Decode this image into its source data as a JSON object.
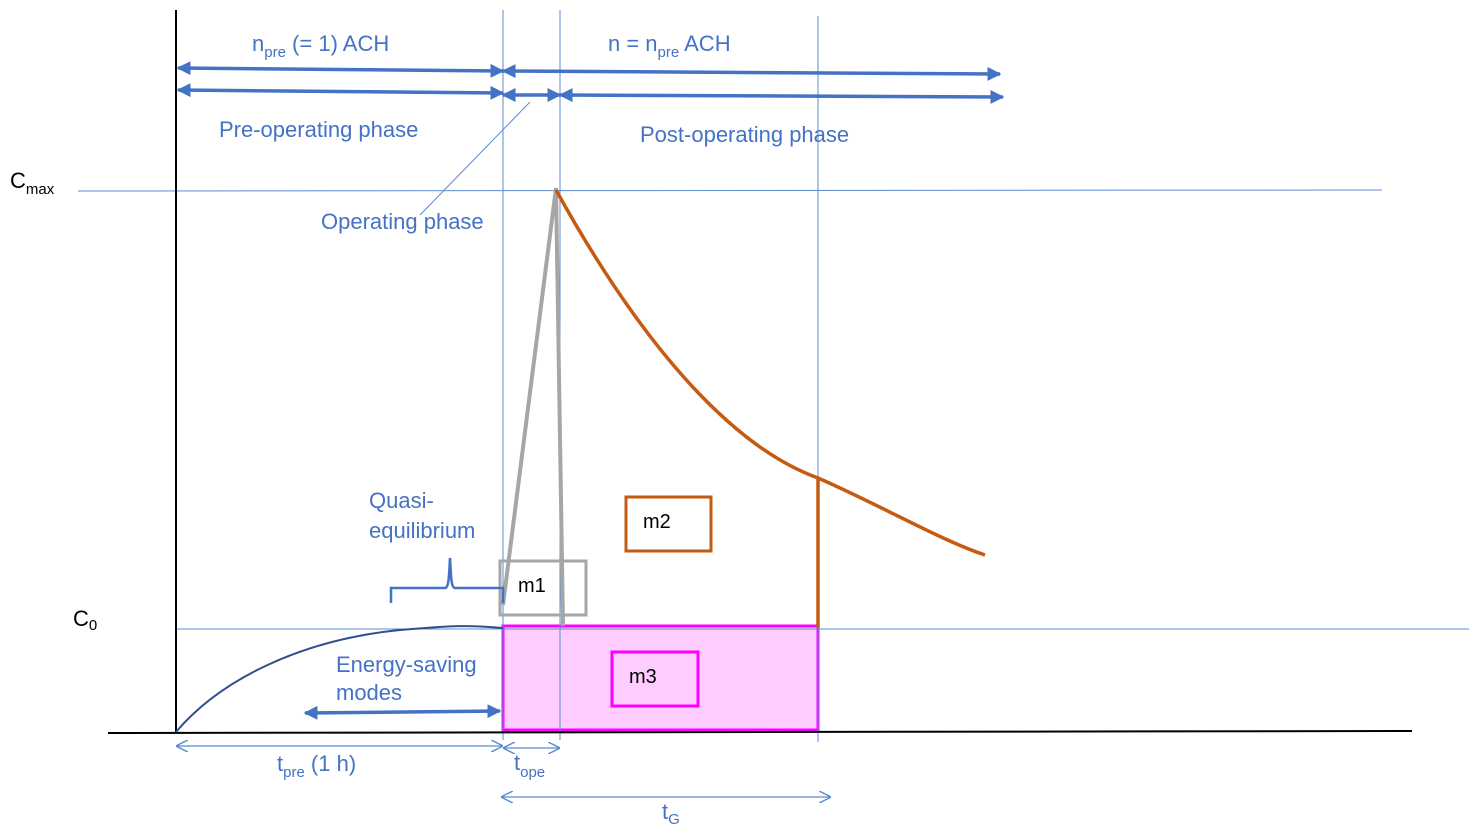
{
  "labels": {
    "n_pre_main": "n",
    "n_pre_sub": "pre",
    "n_pre_suffix": " (= 1) ACH",
    "n_post_prefix": "n = n",
    "n_post_sub": "pre",
    "n_post_suffix": " ACH",
    "pre_operating_phase": "Pre-operating phase",
    "post_operating_phase": "Post-operating phase",
    "operating_phase": "Operating phase",
    "c_max_main": "C",
    "c_max_sub": "max",
    "c0_main": "C",
    "c0_sub": "0",
    "quasi_line1": "Quasi-",
    "quasi_line2": "equilibrium",
    "energy_line1": "Energy-saving",
    "energy_line2": "modes",
    "m1": "m1",
    "m2": "m2",
    "m3": "m3",
    "t_pre_main": "t",
    "t_pre_sub": "pre",
    "t_pre_suffix": "  (1 h)",
    "t_ope_main": "t",
    "t_ope_sub": "ope",
    "t_g_main": "t",
    "t_g_sub": "G"
  },
  "colors": {
    "annotation_blue": "#4472c4",
    "thin_line_blue": "#5b8bd0",
    "decay_orange": "#c55a11",
    "operating_gray": "#a6a6a6",
    "m3_fill": "#ffccff",
    "m3_border": "#ff00ff",
    "m2_border": "#c55a11",
    "m1_border": "#a6a6a6",
    "curve_navy": "#2f4f8f"
  }
}
